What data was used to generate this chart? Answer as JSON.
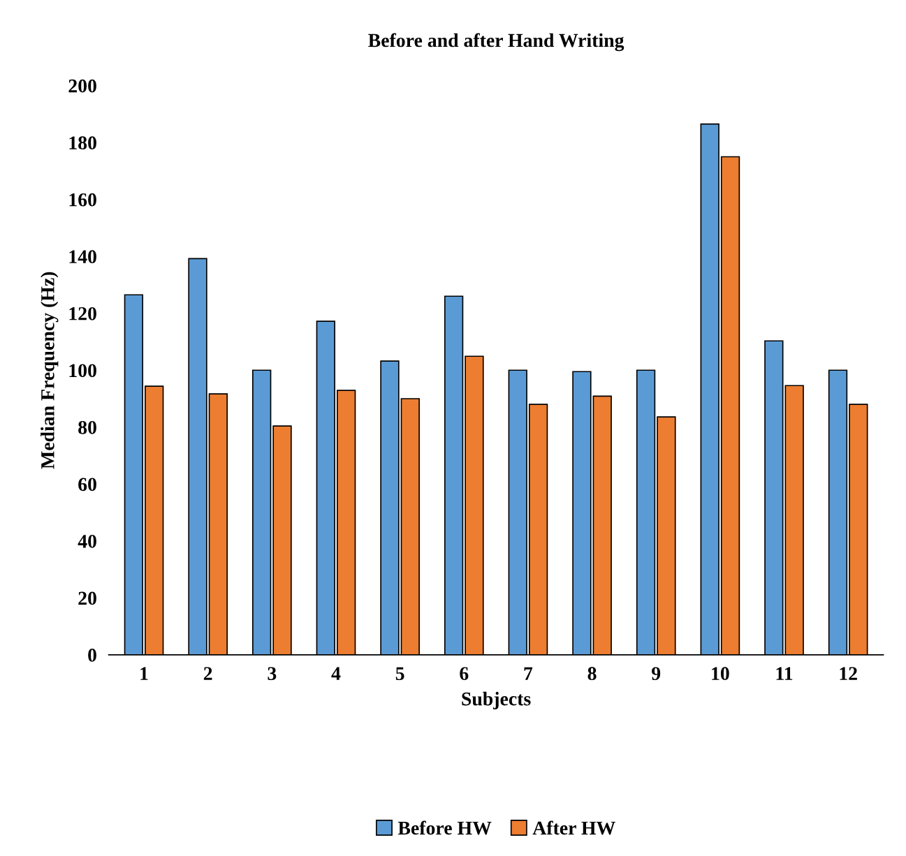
{
  "chart_data": {
    "type": "bar",
    "title": "Before and after Hand Writing",
    "xlabel": "Subjects",
    "ylabel": "Median Frequency (Hz)",
    "categories": [
      "1",
      "2",
      "3",
      "4",
      "5",
      "6",
      "7",
      "8",
      "9",
      "10",
      "11",
      "12"
    ],
    "series": [
      {
        "name": "Before HW",
        "color": "#5b9bd5",
        "values": [
          126.5,
          139.2,
          100,
          117.2,
          103.2,
          126,
          100,
          99.5,
          100,
          186.5,
          110.3,
          100
        ]
      },
      {
        "name": "After HW",
        "color": "#ed7d31",
        "values": [
          94.4,
          91.7,
          80.4,
          92.9,
          90,
          104.9,
          88,
          90.9,
          83.6,
          175,
          94.6,
          88
        ]
      }
    ],
    "ylim": [
      0,
      200
    ],
    "yticks": [
      0,
      20,
      40,
      60,
      80,
      100,
      120,
      140,
      160,
      180,
      200
    ],
    "grid": false,
    "legend": "bottom"
  }
}
